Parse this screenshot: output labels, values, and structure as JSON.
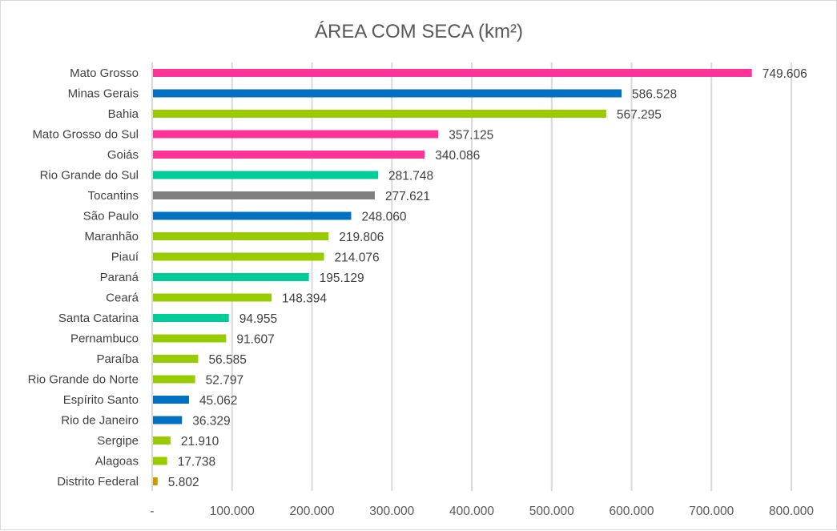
{
  "chart_data": {
    "type": "bar",
    "orientation": "horizontal",
    "title": "ÁREA COM SECA (km²)",
    "xlabel": "",
    "ylabel": "",
    "xlim": [
      0,
      800000
    ],
    "grid": true,
    "legend": "none",
    "x_ticks": [
      "-",
      "100.000",
      "200.000",
      "300.000",
      "400.000",
      "500.000",
      "600.000",
      "700.000",
      "800.000"
    ],
    "categories": [
      "Mato Grosso",
      "Minas Gerais",
      "Bahia",
      "Mato Grosso do Sul",
      "Goiás",
      "Rio Grande do Sul",
      "Tocantins",
      "São Paulo",
      "Maranhão",
      "Piauí",
      "Paraná",
      "Ceará",
      "Santa Catarina",
      "Pernambuco",
      "Paraíba",
      "Rio Grande do Norte",
      "Espírito Santo",
      "Rio de Janeiro",
      "Sergipe",
      "Alagoas",
      "Distrito Federal"
    ],
    "values": [
      749606,
      586528,
      567295,
      357125,
      340086,
      281748,
      277621,
      248060,
      219806,
      214076,
      195129,
      148394,
      94955,
      91607,
      56585,
      52797,
      45062,
      36329,
      21910,
      17738,
      5802
    ],
    "data_labels": [
      "749.606",
      "586.528",
      "567.295",
      "357.125",
      "340.086",
      "281.748",
      "277.621",
      "248.060",
      "219.806",
      "214.076",
      "195.129",
      "148.394",
      "94.955",
      "91.607",
      "56.585",
      "52.797",
      "45.062",
      "36.329",
      "21.910",
      "17.738",
      "5.802"
    ],
    "bar_colors": [
      "#FF3399",
      "#0070C0",
      "#99CC00",
      "#FF3399",
      "#FF3399",
      "#00CC99",
      "#808080",
      "#0070C0",
      "#99CC00",
      "#99CC00",
      "#00CC99",
      "#99CC00",
      "#00CC99",
      "#99CC00",
      "#99CC00",
      "#99CC00",
      "#0070C0",
      "#0070C0",
      "#99CC00",
      "#99CC00",
      "#CC9900"
    ]
  }
}
